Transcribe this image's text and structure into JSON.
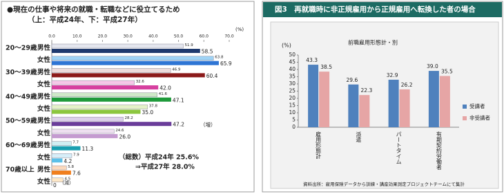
{
  "chart_data": [
    {
      "type": "hbar",
      "title": "●現在の仕事や将来の就職・転職などに役立てるため",
      "subtitle": "（上：平成24年、下：平成27年）",
      "x_label": "(%)",
      "xlim": [
        0,
        70
      ],
      "xticks": [
        {
          "value": 0,
          "label": "0.0"
        },
        {
          "value": 10,
          "label": "10.0"
        },
        {
          "value": 20,
          "label": "20.0"
        },
        {
          "value": 30,
          "label": "30.0"
        },
        {
          "value": 40,
          "label": "40.0"
        },
        {
          "value": 50,
          "label": "50.0"
        },
        {
          "value": 60,
          "label": "60.0"
        },
        {
          "value": 70,
          "label": "70.0"
        }
      ],
      "groups": [
        "20～29歳",
        "30～39歳",
        "40～49歳",
        "50～59歳",
        "60～69歳",
        "70歳以上"
      ],
      "categories": [
        "男性",
        "女性",
        "男性",
        "女性",
        "男性",
        "女性",
        "男性",
        "女性",
        "男性",
        "女性",
        "男性",
        "女性"
      ],
      "series": [
        {
          "colors": [
            "#e4e6ee",
            "#9fd3f5",
            "#ecdcdc",
            "#f6c8e8",
            "#cfe8c8",
            "#e4f2c8",
            "#dcd0ea",
            "#eee0f0",
            "#d0eef2",
            "#d7eef8",
            "#fbd9bd",
            "#fde8c8"
          ],
          "values": [
            51.9,
            63.8,
            46.9,
            32.6,
            41.6,
            37.8,
            28.2,
            24.6,
            7.7,
            7.9,
            5.8,
            4.5
          ]
        },
        {
          "colors": [
            "#1f3a6e",
            "#2e75d4",
            "#8b1a1a",
            "#d6409f",
            "#1e9a3a",
            "#8cc63f",
            "#6a3d9a",
            "#c49bd0",
            "#1a9fb0",
            "#5bc0e8",
            "#f07f1e",
            "#f6b26b"
          ],
          "values": [
            58.5,
            65.9,
            60.4,
            42.0,
            47.1,
            35.0,
            47.2,
            26.0,
            11.3,
            4.2,
            7.6,
            0
          ],
          "value_labels": [
            "58.5",
            "65.9",
            "60.4",
            "42.0",
            "47.1",
            "35.0",
            "47.2",
            "26.0",
            "11.3",
            "4.2",
            "7.6",
            "0"
          ]
        }
      ],
      "annotations": [
        "（増）",
        "（減）",
        "（総数）平成24年 25.6%",
        "⇒平成27年 28.0%"
      ]
    },
    {
      "type": "bar",
      "figure_title": "図3　再就職時に非正規雇用から正規雇用へ転換した者の場合",
      "title": "前職雇用形態計・別",
      "y_label": "(%)",
      "ylim": [
        0,
        50
      ],
      "yticks": [
        0,
        5,
        10,
        15,
        20,
        25,
        30,
        35,
        40,
        45,
        50
      ],
      "categories": [
        "雇用形態計",
        "派遣",
        "パートタイム",
        "有期契約労働者"
      ],
      "series": [
        {
          "name": "受講者",
          "color": "#4f81bd",
          "values": [
            43.3,
            29.6,
            32.9,
            39.0
          ],
          "value_labels": [
            "43.3",
            "29.6",
            "32.9",
            "39.0"
          ]
        },
        {
          "name": "非受講者",
          "color": "#e6a5a5",
          "values": [
            38.5,
            22.3,
            26.2,
            35.5
          ]
        }
      ],
      "legend": "right",
      "source": "資料出所：雇用保険データから訓練・講座効果測定プロジェクトチームにて集計"
    }
  ]
}
